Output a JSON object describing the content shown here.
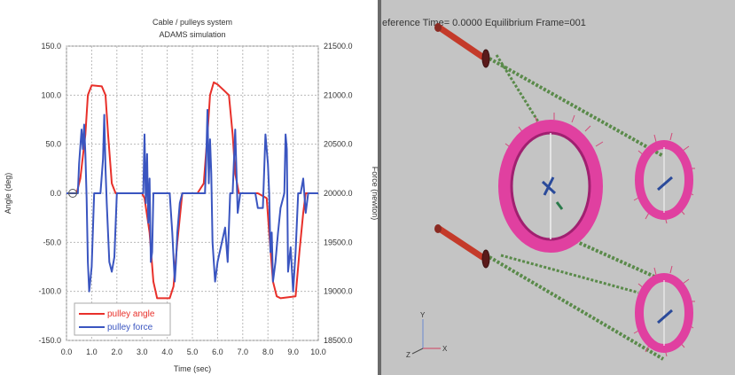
{
  "chart_data": {
    "type": "line",
    "title": "Cable / pulleys system",
    "subtitle": "ADAMS simulation",
    "xlabel": "Time (sec)",
    "ylabel": "Angle (deg)",
    "y2label": "Force (newton)",
    "xlim": [
      0,
      10
    ],
    "ylim": [
      -150,
      150
    ],
    "y2lim": [
      18500,
      21500
    ],
    "grid": true,
    "legend_position": "bottom-left",
    "x_ticks": [
      "0.0",
      "1.0",
      "2.0",
      "3.0",
      "4.0",
      "5.0",
      "6.0",
      "7.0",
      "8.0",
      "9.0",
      "10.0"
    ],
    "y_ticks": [
      "150.0",
      "100.0",
      "50.0",
      "0.0",
      "-50.0",
      "-100.0",
      "-150.0"
    ],
    "y2_ticks": [
      "21500.0",
      "21000.0",
      "20500.0",
      "20000.0",
      "19500.0",
      "19000.0",
      "18500.0"
    ],
    "series": [
      {
        "name": "pulley angle",
        "color": "#e8302a",
        "axis": "left",
        "x": [
          0,
          0.4,
          0.55,
          0.75,
          0.85,
          1.0,
          1.4,
          1.55,
          1.65,
          1.8,
          1.95,
          2.5,
          3.0,
          3.1,
          3.3,
          3.45,
          3.6,
          4.1,
          4.25,
          4.4,
          4.6,
          5.2,
          5.45,
          5.6,
          5.7,
          5.85,
          6.0,
          6.45,
          6.6,
          6.7,
          6.85,
          7.0,
          7.6,
          7.95,
          8.05,
          8.2,
          8.35,
          8.5,
          9.1,
          9.25,
          9.4,
          9.5,
          10
        ],
        "y": [
          0,
          0,
          15,
          60,
          100,
          110,
          109,
          100,
          60,
          10,
          0,
          0,
          0,
          -5,
          -40,
          -90,
          -107,
          -107,
          -95,
          -50,
          0,
          0,
          10,
          60,
          100,
          113,
          111,
          100,
          60,
          20,
          0,
          0,
          0,
          -5,
          -40,
          -90,
          -105,
          -107,
          -105,
          -60,
          -20,
          0,
          0
        ]
      },
      {
        "name": "pulley force",
        "color": "#3a55c0",
        "axis": "right",
        "x": [
          0,
          0.45,
          0.5,
          0.6,
          0.65,
          0.7,
          0.75,
          0.8,
          0.85,
          0.9,
          1.0,
          1.1,
          1.35,
          1.45,
          1.5,
          1.55,
          1.6,
          1.7,
          1.8,
          1.9,
          2.0,
          2.5,
          3.05,
          3.1,
          3.15,
          3.2,
          3.25,
          3.3,
          3.35,
          3.4,
          3.45,
          3.5,
          3.6,
          4.1,
          4.2,
          4.3,
          4.35,
          4.4,
          4.5,
          4.6,
          5.3,
          5.5,
          5.55,
          5.6,
          5.65,
          5.7,
          5.75,
          5.8,
          5.9,
          6.0,
          6.3,
          6.4,
          6.5,
          6.55,
          6.6,
          6.7,
          6.8,
          6.9,
          7.5,
          7.6,
          7.8,
          7.9,
          8.0,
          8.05,
          8.1,
          8.15,
          8.2,
          8.3,
          8.4,
          8.5,
          8.65,
          8.7,
          8.75,
          8.8,
          8.9,
          9.0,
          9.1,
          9.2,
          9.3,
          9.4,
          9.5,
          9.6,
          10
        ],
        "y": [
          20000,
          20000,
          20300,
          20650,
          20450,
          20700,
          20400,
          19950,
          19300,
          19000,
          19250,
          20000,
          20000,
          20350,
          20800,
          20250,
          19900,
          19300,
          19200,
          19350,
          20000,
          20000,
          20000,
          20600,
          19900,
          20400,
          19700,
          20150,
          19300,
          19400,
          20000,
          20000,
          20000,
          20000,
          19600,
          19100,
          19300,
          19600,
          19900,
          20000,
          20000,
          20000,
          20350,
          20850,
          20100,
          20550,
          20200,
          19500,
          19100,
          19300,
          19650,
          19300,
          20000,
          20000,
          20000,
          20650,
          19800,
          20000,
          20000,
          19850,
          19850,
          20600,
          20300,
          20000,
          19400,
          19600,
          19100,
          19300,
          19600,
          19850,
          20000,
          20600,
          20450,
          19200,
          19450,
          19000,
          19400,
          20000,
          20000,
          20150,
          19800,
          20000,
          20000
        ]
      }
    ]
  },
  "simulation": {
    "status_text": "eference  Time=  0.0000  Equilibrium  Frame=001",
    "axis_y": "Y",
    "axis_x": "X",
    "axis_z": "Z"
  }
}
